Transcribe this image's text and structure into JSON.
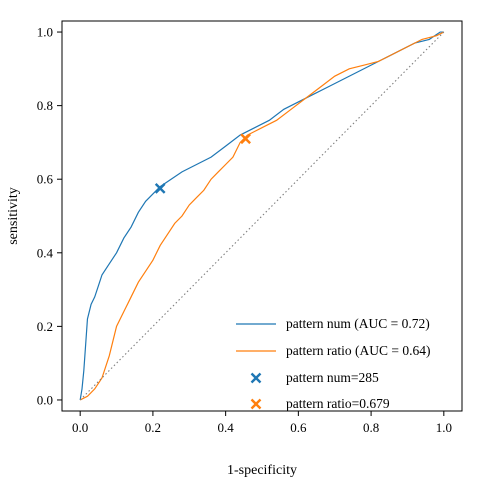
{
  "chart_data": {
    "type": "line",
    "xlabel": "1-specificity",
    "ylabel": "sensitivity",
    "xlim": [
      0.0,
      1.0
    ],
    "ylim": [
      0.0,
      1.0
    ],
    "x_ticks": [
      "0.0",
      "0.2",
      "0.4",
      "0.6",
      "0.8",
      "1.0"
    ],
    "y_ticks": [
      "0.0",
      "0.2",
      "0.4",
      "0.6",
      "0.8",
      "1.0"
    ],
    "grid": false,
    "legend_position": "bottom-right",
    "series": [
      {
        "name": "pattern num (AUC = 0.72)",
        "color": "#1f77b4",
        "x": [
          0.0,
          0.005,
          0.01,
          0.015,
          0.02,
          0.03,
          0.04,
          0.05,
          0.06,
          0.08,
          0.1,
          0.12,
          0.14,
          0.16,
          0.18,
          0.2,
          0.22,
          0.25,
          0.28,
          0.32,
          0.36,
          0.4,
          0.44,
          0.48,
          0.52,
          0.56,
          0.6,
          0.64,
          0.68,
          0.72,
          0.76,
          0.8,
          0.84,
          0.88,
          0.92,
          0.96,
          0.99,
          1.0
        ],
        "y": [
          0.0,
          0.03,
          0.08,
          0.15,
          0.22,
          0.26,
          0.28,
          0.31,
          0.34,
          0.37,
          0.4,
          0.44,
          0.47,
          0.51,
          0.54,
          0.56,
          0.58,
          0.6,
          0.62,
          0.64,
          0.66,
          0.69,
          0.72,
          0.74,
          0.76,
          0.79,
          0.81,
          0.83,
          0.85,
          0.87,
          0.89,
          0.91,
          0.93,
          0.95,
          0.97,
          0.98,
          1.0,
          1.0
        ]
      },
      {
        "name": "pattern ratio (AUC = 0.64)",
        "color": "#ff7f0e",
        "x": [
          0.0,
          0.02,
          0.04,
          0.06,
          0.08,
          0.1,
          0.12,
          0.14,
          0.16,
          0.18,
          0.2,
          0.22,
          0.24,
          0.26,
          0.28,
          0.3,
          0.32,
          0.34,
          0.36,
          0.38,
          0.4,
          0.42,
          0.44,
          0.46,
          0.5,
          0.54,
          0.58,
          0.62,
          0.66,
          0.7,
          0.74,
          0.78,
          0.82,
          0.86,
          0.9,
          0.94,
          0.98,
          1.0
        ],
        "y": [
          0.0,
          0.01,
          0.03,
          0.06,
          0.12,
          0.2,
          0.24,
          0.28,
          0.32,
          0.35,
          0.38,
          0.42,
          0.45,
          0.48,
          0.5,
          0.53,
          0.55,
          0.57,
          0.6,
          0.62,
          0.64,
          0.66,
          0.7,
          0.72,
          0.74,
          0.76,
          0.79,
          0.82,
          0.85,
          0.88,
          0.9,
          0.91,
          0.92,
          0.94,
          0.96,
          0.98,
          0.99,
          1.0
        ]
      },
      {
        "name": "",
        "color": "#808080",
        "style": "dotted",
        "x": [
          0.0,
          1.0
        ],
        "y": [
          0.0,
          1.0
        ]
      }
    ],
    "markers": [
      {
        "name": "pattern num=285",
        "color": "#1f77b4",
        "x": 0.22,
        "y": 0.575
      },
      {
        "name": "pattern ratio=0.679",
        "color": "#ff7f0e",
        "x": 0.455,
        "y": 0.71
      }
    ]
  }
}
